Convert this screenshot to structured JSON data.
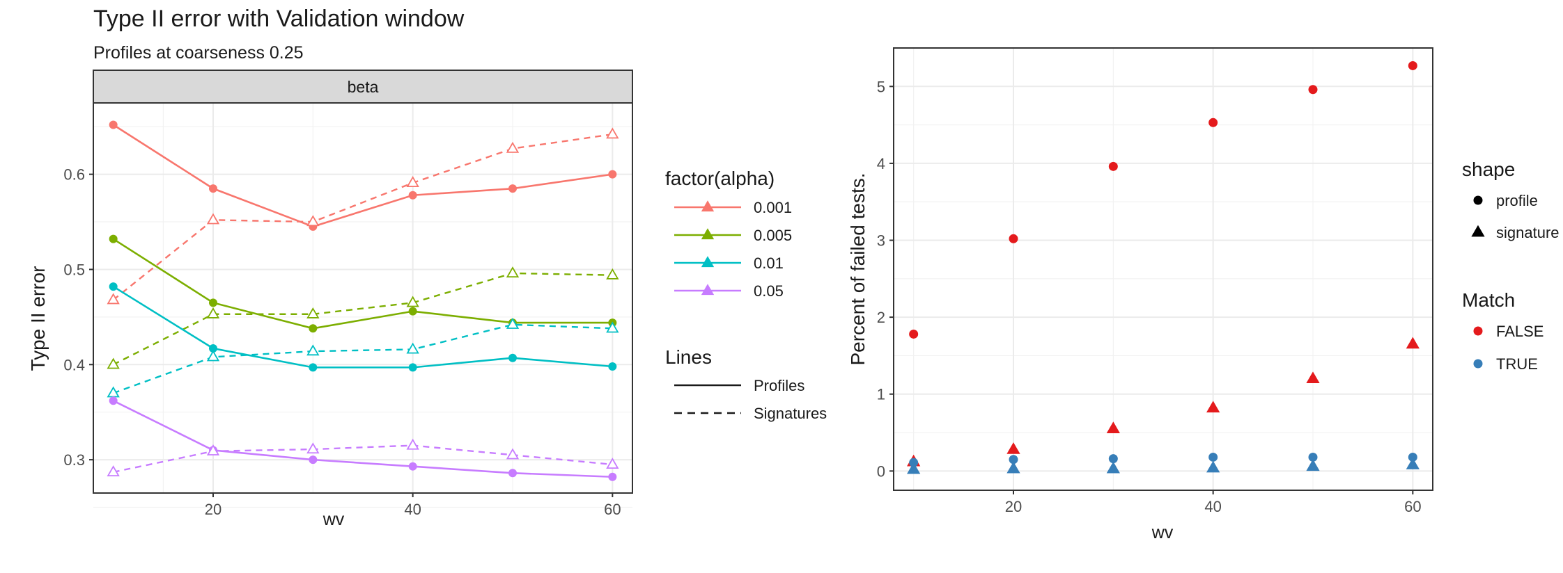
{
  "header": {
    "title": "Type II error with Validation window",
    "subtitle": "Profiles at coarseness 0.25"
  },
  "colors": {
    "alpha_0.001": "#F8766D",
    "alpha_0.005": "#7CAE00",
    "alpha_0.01": "#00BFC4",
    "alpha_0.05": "#C77CFF",
    "match_false": "#E41A1C",
    "match_true": "#377EB8"
  },
  "chart_data": [
    {
      "type": "line",
      "facet_label": "beta",
      "xlabel": "wv",
      "ylabel": "Type II error",
      "xlim": [
        8,
        62
      ],
      "ylim": [
        0.265,
        0.675
      ],
      "x_ticks": [
        20,
        40,
        60
      ],
      "y_ticks": [
        0.3,
        0.4,
        0.5,
        0.6
      ],
      "x_tick_labels": [
        "20",
        "40",
        "60"
      ],
      "y_tick_labels": [
        "0.3",
        "0.4",
        "0.5",
        "0.6"
      ],
      "grid": true,
      "x": [
        10,
        20,
        30,
        40,
        50,
        60
      ],
      "color_legend_title": "factor(alpha)",
      "linetype_legend_title": "Lines",
      "linetype_legend": [
        {
          "label": "Profiles",
          "dash": "solid"
        },
        {
          "label": "Signatures",
          "dash": "dashed"
        }
      ],
      "series": [
        {
          "name": "0.001",
          "color": "#F8766D",
          "profiles": [
            0.652,
            0.585,
            0.545,
            0.578,
            0.585,
            0.6
          ],
          "signatures": [
            0.468,
            0.552,
            0.55,
            0.591,
            0.627,
            0.642
          ]
        },
        {
          "name": "0.005",
          "color": "#7CAE00",
          "profiles": [
            0.532,
            0.465,
            0.438,
            0.456,
            0.444,
            0.444
          ],
          "signatures": [
            0.4,
            0.453,
            0.453,
            0.465,
            0.496,
            0.494
          ]
        },
        {
          "name": "0.01",
          "color": "#00BFC4",
          "profiles": [
            0.482,
            0.417,
            0.397,
            0.397,
            0.407,
            0.398
          ],
          "signatures": [
            0.37,
            0.408,
            0.414,
            0.416,
            0.442,
            0.438
          ]
        },
        {
          "name": "0.05",
          "color": "#C77CFF",
          "profiles": [
            0.362,
            0.31,
            0.3,
            0.293,
            0.286,
            0.282
          ],
          "signatures": [
            0.287,
            0.309,
            0.311,
            0.315,
            0.305,
            0.295
          ]
        }
      ]
    },
    {
      "type": "scatter",
      "xlabel": "wv",
      "ylabel": "Percent of failed tests.",
      "xlim": [
        8,
        62
      ],
      "ylim": [
        -0.25,
        5.5
      ],
      "x_ticks": [
        20,
        40,
        60
      ],
      "y_ticks": [
        0,
        1,
        2,
        3,
        4,
        5
      ],
      "x_tick_labels": [
        "20",
        "40",
        "60"
      ],
      "y_tick_labels": [
        "0",
        "1",
        "2",
        "3",
        "4",
        "5"
      ],
      "grid": true,
      "x": [
        10,
        20,
        30,
        40,
        50,
        60
      ],
      "shape_legend_title": "shape",
      "shape_legend": [
        {
          "label": "profile",
          "shape": "circle"
        },
        {
          "label": "signature",
          "shape": "triangle"
        }
      ],
      "color_legend_title": "Match",
      "color_legend": [
        {
          "label": "FALSE",
          "color": "#E41A1C"
        },
        {
          "label": "TRUE",
          "color": "#377EB8"
        }
      ],
      "series": [
        {
          "shape": "profile",
          "match": "FALSE",
          "values": [
            1.78,
            3.02,
            3.96,
            4.53,
            4.96,
            5.27
          ]
        },
        {
          "shape": "signature",
          "match": "FALSE",
          "values": [
            0.12,
            0.28,
            0.55,
            0.82,
            1.2,
            1.65
          ]
        },
        {
          "shape": "profile",
          "match": "TRUE",
          "values": [
            0.11,
            0.15,
            0.16,
            0.18,
            0.18,
            0.18
          ]
        },
        {
          "shape": "signature",
          "match": "TRUE",
          "values": [
            0.02,
            0.03,
            0.03,
            0.04,
            0.06,
            0.08
          ]
        }
      ]
    }
  ]
}
